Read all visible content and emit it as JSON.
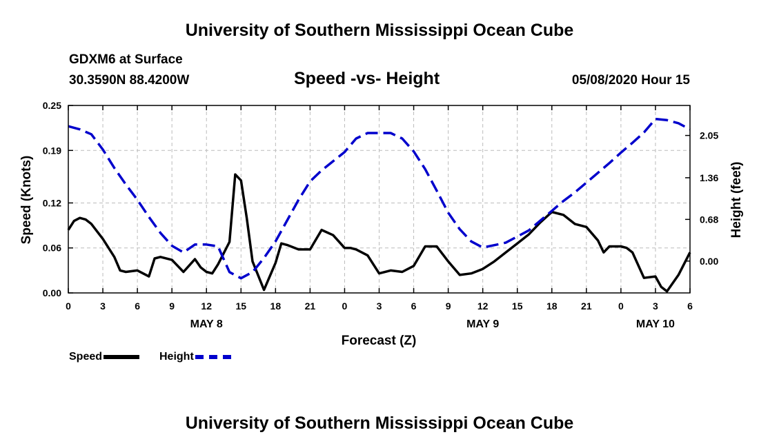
{
  "header": {
    "title": "University of Southern Mississippi Ocean Cube",
    "station": "GDXM6 at Surface",
    "coords": "30.3590N 88.4200W",
    "run_time": "05/08/2020 Hour 15",
    "footer_title": "University of Southern Mississippi Ocean Cube"
  },
  "legend": {
    "speed_label": "Speed",
    "height_label": "Height"
  },
  "colors": {
    "speed": "#000000",
    "height": "#0000cc",
    "grid": "#bbbbbb"
  },
  "chart_data": {
    "type": "line",
    "title": "Speed -vs- Height",
    "xlabel": "Forecast (Z)",
    "ylabel": "Speed (Knots)",
    "y2label": "Height (feet)",
    "xlim": [
      0,
      54
    ],
    "ylim": [
      0,
      0.25
    ],
    "y2lim": [
      -0.52,
      2.54
    ],
    "grid": true,
    "x_ticks": [
      0,
      3,
      6,
      9,
      12,
      15,
      18,
      21,
      24,
      27,
      30,
      33,
      36,
      39,
      42,
      45,
      48,
      51,
      54
    ],
    "x_tick_labels": [
      "0",
      "3",
      "6",
      "9",
      "12",
      "15",
      "18",
      "21",
      "0",
      "3",
      "6",
      "9",
      "12",
      "15",
      "18",
      "21",
      "0",
      "3",
      "6"
    ],
    "y_ticks": [
      0.0,
      0.06,
      0.12,
      0.19,
      0.25
    ],
    "y_tick_labels": [
      "0.00",
      "0.06",
      "0.12",
      "0.19",
      "0.25"
    ],
    "y2_ticks": [
      0.0,
      0.68,
      1.36,
      2.05
    ],
    "y2_tick_labels": [
      "0.00",
      "0.68",
      "1.36",
      "2.05"
    ],
    "date_labels": [
      {
        "text": "MAY 8",
        "x": 12
      },
      {
        "text": "MAY 9",
        "x": 36
      },
      {
        "text": "MAY 10",
        "x": 51
      }
    ],
    "series": [
      {
        "name": "Speed",
        "axis": "left",
        "style": "solid",
        "x": [
          0,
          0.5,
          1,
          1.5,
          2,
          3,
          4,
          4.5,
          5,
          6,
          7,
          7.5,
          8,
          9,
          10,
          11,
          11.5,
          12,
          12.5,
          13,
          14,
          14.5,
          15,
          15.5,
          16,
          17,
          18,
          18.5,
          19,
          20,
          21,
          22,
          23,
          24,
          24.5,
          25,
          26,
          27,
          28,
          29,
          30,
          31,
          32,
          33,
          34,
          35,
          36,
          37,
          38,
          39,
          40,
          41,
          42,
          43,
          44,
          45,
          46,
          46.5,
          47,
          48,
          48.5,
          49,
          50,
          51,
          51.5,
          52,
          53,
          54
        ],
        "values": [
          0.084,
          0.096,
          0.1,
          0.098,
          0.092,
          0.072,
          0.048,
          0.03,
          0.028,
          0.03,
          0.022,
          0.046,
          0.048,
          0.044,
          0.028,
          0.045,
          0.034,
          0.028,
          0.026,
          0.038,
          0.068,
          0.158,
          0.15,
          0.1,
          0.042,
          0.004,
          0.04,
          0.066,
          0.064,
          0.058,
          0.058,
          0.084,
          0.077,
          0.06,
          0.06,
          0.058,
          0.05,
          0.026,
          0.03,
          0.028,
          0.036,
          0.062,
          0.062,
          0.042,
          0.024,
          0.026,
          0.032,
          0.042,
          0.054,
          0.066,
          0.078,
          0.094,
          0.108,
          0.104,
          0.092,
          0.088,
          0.07,
          0.054,
          0.062,
          0.062,
          0.06,
          0.054,
          0.02,
          0.022,
          0.008,
          0.002,
          0.024,
          0.054
        ]
      },
      {
        "name": "Height",
        "axis": "right",
        "style": "dashed",
        "x": [
          0,
          1,
          2,
          3,
          4,
          5,
          6,
          7,
          8,
          9,
          10,
          11,
          12,
          13,
          14,
          15,
          16,
          17,
          18,
          19,
          20,
          21,
          22,
          23,
          24,
          25,
          26,
          27,
          28,
          29,
          30,
          31,
          32,
          33,
          34,
          35,
          36,
          37,
          38,
          39,
          40,
          41,
          42,
          43,
          44,
          45,
          46,
          47,
          48,
          49,
          50,
          51,
          52,
          53,
          54
        ],
        "values": [
          2.2,
          2.15,
          2.07,
          1.82,
          1.52,
          1.25,
          1.0,
          0.72,
          0.46,
          0.25,
          0.14,
          0.27,
          0.27,
          0.24,
          -0.18,
          -0.28,
          -0.18,
          0.05,
          0.32,
          0.66,
          1.0,
          1.3,
          1.48,
          1.63,
          1.78,
          2.0,
          2.09,
          2.09,
          2.09,
          2.0,
          1.79,
          1.5,
          1.15,
          0.79,
          0.52,
          0.32,
          0.22,
          0.26,
          0.3,
          0.4,
          0.5,
          0.66,
          0.82,
          0.98,
          1.12,
          1.28,
          1.44,
          1.6,
          1.77,
          1.93,
          2.1,
          2.32,
          2.3,
          2.25,
          2.15
        ]
      }
    ]
  }
}
